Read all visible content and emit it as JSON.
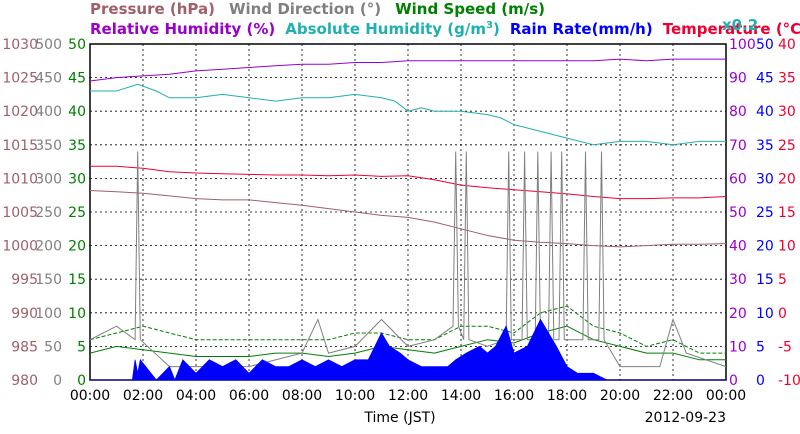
{
  "chart_data": {
    "type": "line",
    "date": "2012-09-23",
    "xlabel": "Time (JST)",
    "x_ticks": [
      "00:00",
      "02:00",
      "04:00",
      "06:00",
      "08:00",
      "10:00",
      "12:00",
      "14:00",
      "16:00",
      "18:00",
      "20:00",
      "22:00",
      "00:00"
    ],
    "legend": [
      {
        "id": "pressure",
        "text": "Pressure (hPa)",
        "color": "#a0606a"
      },
      {
        "id": "wdir",
        "text": "Wind Direction (°)",
        "color": "#808080"
      },
      {
        "id": "wspd",
        "text": "Wind Speed (m/s)",
        "color": "#008000"
      },
      {
        "id": "rh",
        "text": "Relative Humidity (%)",
        "color": "#9900cc"
      },
      {
        "id": "ah",
        "text": "Absolute Humidity (g/m",
        "sup": "3",
        "close": ")",
        "color": "#20b0b0"
      },
      {
        "id": "rain",
        "text": "Rain Rate(mm/h)",
        "color": "#0000ff"
      },
      {
        "id": "temp",
        "text": "Temperature (°C)",
        "color": "#ee0033"
      }
    ],
    "ah_scale_note": "x0.2",
    "axes": {
      "pressure": {
        "ticks": [
          "1030",
          "1025",
          "1020",
          "1015",
          "1010",
          "1005",
          "1000",
          "995",
          "990",
          "985",
          "980"
        ],
        "range": [
          980,
          1030
        ],
        "color": "#a0606a"
      },
      "wdir": {
        "ticks": [
          "500",
          "450",
          "400",
          "350",
          "300",
          "250",
          "200",
          "150",
          "100",
          "50",
          "0"
        ],
        "range": [
          0,
          500
        ],
        "color": "#808080"
      },
      "wspd": {
        "ticks": [
          "50",
          "45",
          "40",
          "35",
          "30",
          "25",
          "20",
          "15",
          "10",
          "5",
          "0"
        ],
        "range": [
          0,
          50
        ],
        "color": "#008000"
      },
      "rh": {
        "ticks": [
          "100",
          "90",
          "80",
          "70",
          "60",
          "50",
          "40",
          "30",
          "20",
          "10",
          "0"
        ],
        "range": [
          0,
          100
        ],
        "color": "#9900cc"
      },
      "rain": {
        "ticks": [
          "50",
          "45",
          "40",
          "35",
          "30",
          "25",
          "20",
          "15",
          "10",
          "5",
          "0"
        ],
        "range": [
          0,
          50
        ],
        "color": "#0000ff"
      },
      "temp": {
        "ticks": [
          "40",
          "35",
          "30",
          "25",
          "20",
          "15",
          "10",
          "5",
          "0",
          "-5",
          "-10"
        ],
        "range": [
          -10,
          40
        ],
        "color": "#ee0033"
      }
    },
    "series": [
      {
        "id": "rh",
        "color": "#9900cc",
        "x": [
          0,
          1,
          2,
          3,
          4,
          5,
          6,
          7,
          8,
          9,
          10,
          11,
          12,
          13,
          14,
          15,
          16,
          17,
          18,
          19,
          20,
          21,
          22,
          23,
          24
        ],
        "y": [
          89,
          90,
          90.5,
          91,
          92,
          92.5,
          93,
          93.5,
          94,
          94,
          94.5,
          94.5,
          95,
          95,
          95,
          95,
          95,
          95,
          95,
          95,
          95.5,
          95,
          95.5,
          95.5,
          95.5
        ]
      },
      {
        "id": "ah",
        "color": "#20b0b0",
        "x": [
          0,
          1,
          1.8,
          2.5,
          3,
          4,
          5,
          6,
          7,
          8,
          9,
          10,
          11,
          11.5,
          12,
          12.5,
          13,
          14,
          15,
          15.5,
          16,
          17,
          18,
          19,
          20,
          21,
          22,
          23,
          24
        ],
        "y": [
          86,
          86,
          88,
          86,
          84,
          84,
          85,
          84,
          83,
          84,
          84,
          85,
          84,
          83,
          80,
          81,
          80,
          80,
          79,
          78,
          76,
          74,
          72,
          70,
          71,
          71,
          70,
          71,
          71
        ]
      },
      {
        "id": "temp",
        "color": "#ee0033",
        "x": [
          0,
          1,
          2,
          3,
          4,
          5,
          6,
          7,
          8,
          9,
          10,
          11,
          12,
          13,
          14,
          15,
          16,
          17,
          18,
          19,
          20,
          21,
          22,
          23,
          24
        ],
        "y": [
          21.8,
          21.8,
          21.5,
          21.0,
          20.8,
          20.7,
          20.6,
          20.5,
          20.5,
          20.4,
          20.5,
          20.3,
          20.4,
          19.8,
          19.0,
          18.6,
          18.3,
          18.0,
          17.7,
          17.3,
          17.0,
          17.0,
          17.1,
          17.1,
          17.3
        ]
      },
      {
        "id": "pressure",
        "color": "#a0606a",
        "x": [
          0,
          1,
          2,
          3,
          4,
          5,
          6,
          7,
          8,
          9,
          10,
          11,
          12,
          13,
          14,
          15,
          16,
          17,
          18,
          19,
          20,
          21,
          22,
          23,
          24
        ],
        "y": [
          1008.2,
          1008.0,
          1007.8,
          1007.4,
          1007.0,
          1006.8,
          1006.8,
          1006.4,
          1006.0,
          1005.5,
          1005.0,
          1004.5,
          1004.2,
          1003.5,
          1002.5,
          1001.5,
          1000.8,
          1000.5,
          1000.3,
          1000.0,
          999.8,
          1000.0,
          1000.2,
          1000.2,
          1000.3
        ]
      },
      {
        "id": "wspd",
        "color": "#008000",
        "x": [
          0,
          1,
          2,
          3,
          4,
          5,
          6,
          7,
          8,
          9,
          10,
          11,
          12,
          13,
          14,
          15,
          16,
          17,
          18,
          19,
          20,
          21,
          22,
          23,
          24
        ],
        "y": [
          4,
          5,
          4.5,
          4,
          3.5,
          3.5,
          3.5,
          4,
          4,
          3.5,
          4,
          5,
          4.5,
          4,
          5,
          6,
          5.5,
          7,
          8,
          6,
          5,
          4,
          4,
          3,
          3
        ]
      },
      {
        "id": "wspd_gust",
        "color": "#008000",
        "dashed": true,
        "x": [
          0,
          1,
          2,
          3,
          4,
          5,
          6,
          7,
          8,
          9,
          10,
          11,
          12,
          13,
          14,
          15,
          16,
          17,
          18,
          19,
          20,
          21,
          22,
          23,
          24
        ],
        "y": [
          6,
          7,
          8,
          7,
          6,
          6,
          6,
          6,
          6,
          6,
          7,
          7,
          6,
          6,
          8,
          8,
          7,
          10,
          11,
          8,
          7,
          5,
          6,
          4,
          4
        ]
      },
      {
        "id": "wdir",
        "color": "#808080",
        "x": [
          0,
          1,
          1.7,
          1.8,
          1.9,
          3,
          6,
          8,
          8.6,
          9,
          10,
          11,
          12,
          13,
          13.7,
          13.8,
          13.9,
          14.1,
          14.2,
          14.3,
          15,
          15.7,
          15.8,
          15.9,
          16.3,
          16.4,
          16.5,
          16.8,
          16.9,
          17.0,
          17.3,
          17.4,
          17.5,
          17.7,
          17.8,
          17.9,
          18.6,
          18.7,
          18.8,
          19.2,
          19.3,
          19.4,
          20,
          21.5,
          22,
          22.5,
          24
        ],
        "y": [
          60,
          80,
          60,
          340,
          60,
          20,
          20,
          40,
          90,
          40,
          50,
          90,
          50,
          60,
          80,
          340,
          80,
          60,
          340,
          60,
          50,
          60,
          340,
          60,
          60,
          340,
          60,
          60,
          340,
          60,
          60,
          340,
          60,
          60,
          340,
          60,
          60,
          340,
          60,
          60,
          340,
          60,
          20,
          20,
          90,
          40,
          20
        ]
      },
      {
        "id": "rain",
        "color": "#0000ff",
        "fill": true,
        "x": [
          0,
          1.6,
          1.7,
          1.8,
          1.9,
          2.5,
          3,
          3.2,
          3.5,
          4,
          4.5,
          5,
          5.5,
          6,
          6.5,
          7,
          7.5,
          8,
          8.5,
          9,
          9.5,
          10,
          10.5,
          11,
          11.3,
          11.7,
          12,
          12.5,
          13,
          13.5,
          13.8,
          14.2,
          14.7,
          15,
          15.3,
          15.7,
          16,
          16.5,
          17,
          17.3,
          17.6,
          18,
          18.4,
          19,
          19.5,
          20,
          24
        ],
        "y": [
          0,
          0,
          3,
          1,
          3,
          0,
          2,
          0,
          3,
          1,
          3,
          2,
          3,
          1,
          3,
          2,
          2,
          3,
          2,
          3,
          2,
          3,
          3,
          7,
          5,
          4,
          3,
          2,
          2,
          2,
          3,
          4,
          5,
          4,
          5,
          8,
          4,
          5,
          9,
          7,
          5,
          2,
          1,
          1,
          0,
          0,
          0
        ]
      }
    ]
  }
}
